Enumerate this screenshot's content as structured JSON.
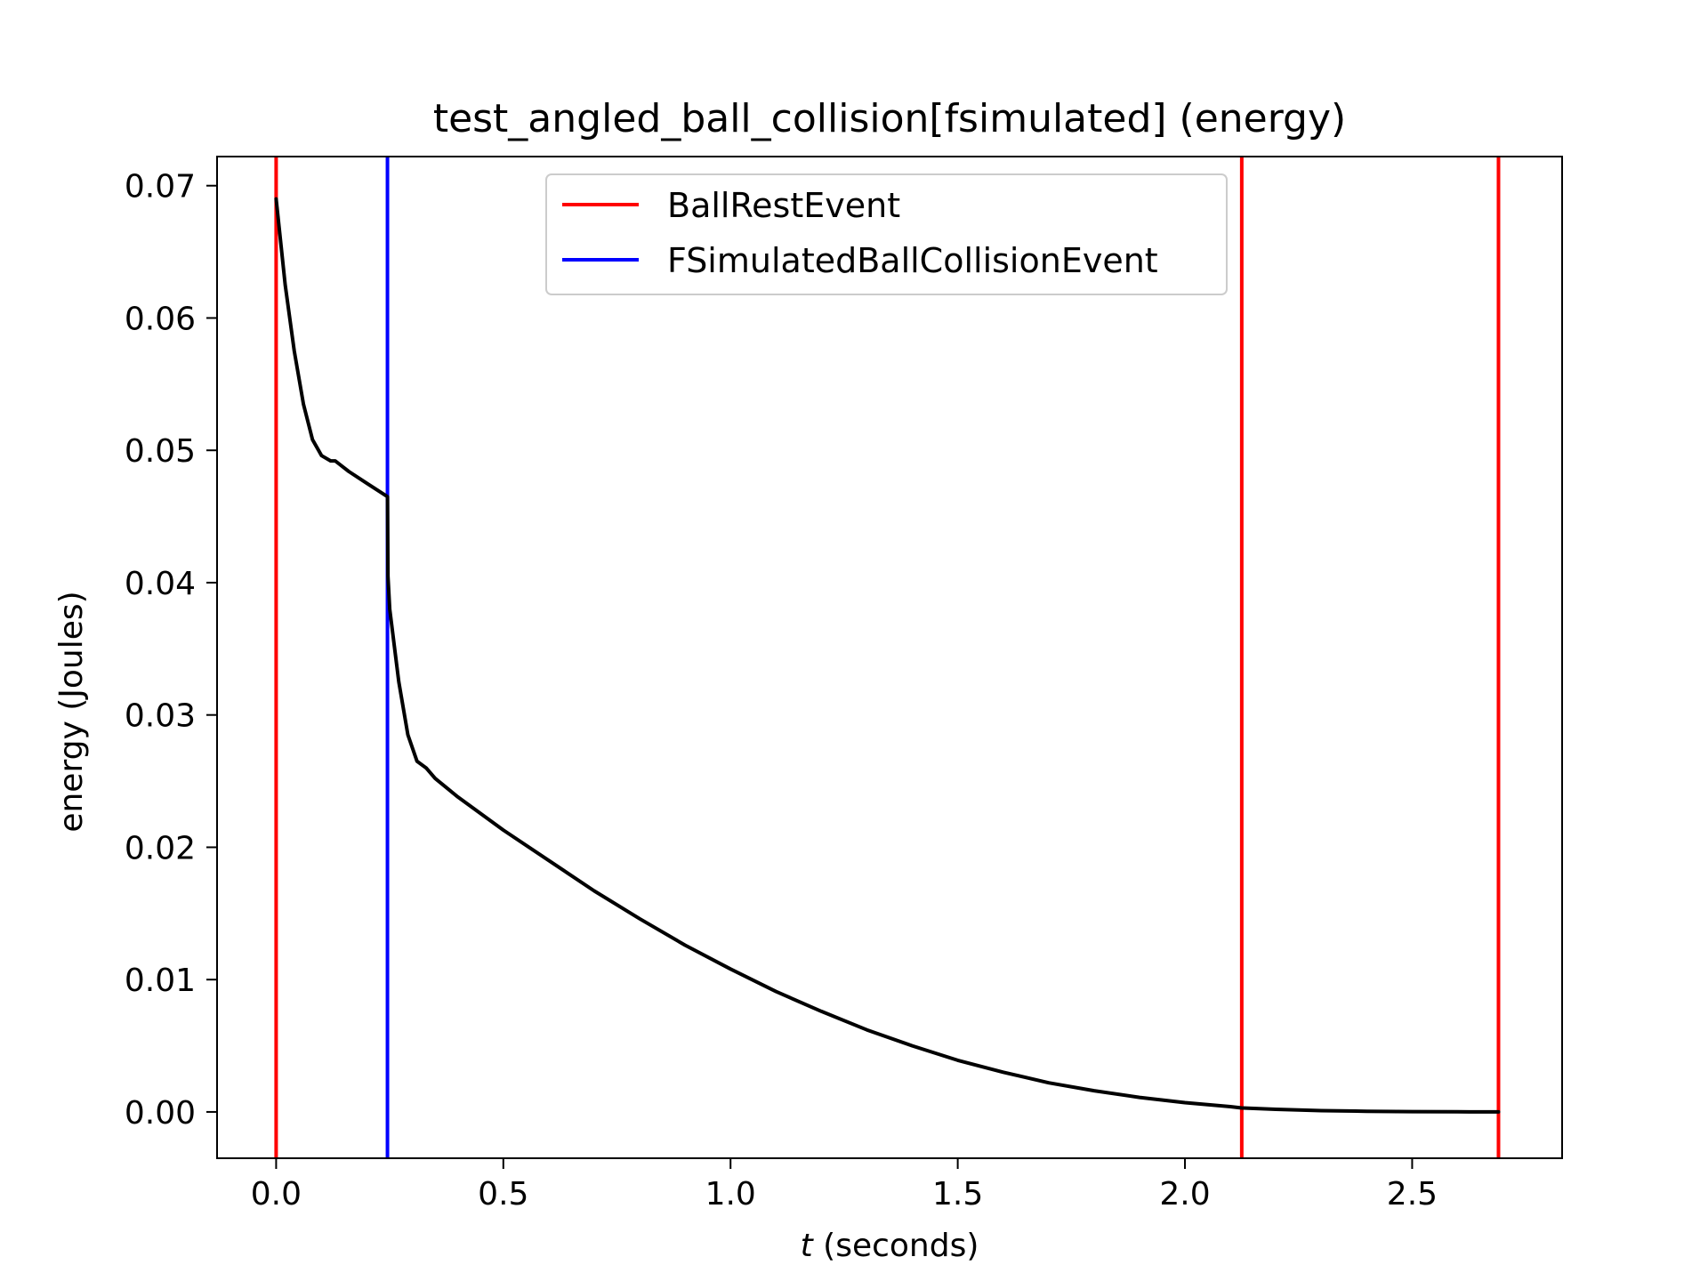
{
  "chart_data": {
    "type": "line",
    "title": "test_angled_ball_collision[fsimulated] (energy)",
    "xlabel_italic": "t",
    "xlabel_rest": " (seconds)",
    "ylabel": "energy (Joules)",
    "xlim": [
      -0.13,
      2.83
    ],
    "ylim": [
      -0.0035,
      0.0722
    ],
    "xticks": [
      0.0,
      0.5,
      1.0,
      1.5,
      2.0,
      2.5
    ],
    "xtick_labels": [
      "0.0",
      "0.5",
      "1.0",
      "1.5",
      "2.0",
      "2.5"
    ],
    "yticks": [
      0.0,
      0.01,
      0.02,
      0.03,
      0.04,
      0.05,
      0.06,
      0.07
    ],
    "ytick_labels": [
      "0.00",
      "0.01",
      "0.02",
      "0.03",
      "0.04",
      "0.05",
      "0.06",
      "0.07"
    ],
    "legend_position": "upper-center",
    "series": [
      {
        "name": "energy",
        "color": "#000000",
        "x": [
          0.0,
          0.02,
          0.04,
          0.06,
          0.08,
          0.1,
          0.12,
          0.13,
          0.16,
          0.2,
          0.245,
          0.246,
          0.25,
          0.27,
          0.29,
          0.31,
          0.33,
          0.35,
          0.4,
          0.5,
          0.6,
          0.7,
          0.8,
          0.9,
          1.0,
          1.1,
          1.2,
          1.3,
          1.4,
          1.5,
          1.6,
          1.7,
          1.8,
          1.9,
          2.0,
          2.1,
          2.125,
          2.2,
          2.3,
          2.4,
          2.5,
          2.6,
          2.69
        ],
        "y": [
          0.069,
          0.0625,
          0.0575,
          0.0535,
          0.0508,
          0.0496,
          0.0492,
          0.0492,
          0.0484,
          0.0475,
          0.0465,
          0.0405,
          0.038,
          0.0325,
          0.0285,
          0.0265,
          0.026,
          0.0252,
          0.0238,
          0.0213,
          0.019,
          0.0167,
          0.0146,
          0.0126,
          0.0108,
          0.0091,
          0.0076,
          0.0062,
          0.005,
          0.0039,
          0.003,
          0.0022,
          0.0016,
          0.0011,
          0.0007,
          0.0004,
          0.0003,
          0.0002,
          0.0001,
          5e-05,
          2e-05,
          1e-05,
          0.0
        ]
      }
    ],
    "events": [
      {
        "name": "BallRestEvent",
        "color": "#ff0000",
        "x": 0.0
      },
      {
        "name": "FSimulatedBallCollisionEvent",
        "color": "#0000ff",
        "x": 0.245
      },
      {
        "name": "BallRestEvent",
        "color": "#ff0000",
        "x": 2.125
      },
      {
        "name": "BallRestEvent",
        "color": "#ff0000",
        "x": 2.69
      }
    ],
    "legend": [
      {
        "label": "BallRestEvent",
        "color": "#ff0000"
      },
      {
        "label": "FSimulatedBallCollisionEvent",
        "color": "#0000ff"
      }
    ]
  }
}
